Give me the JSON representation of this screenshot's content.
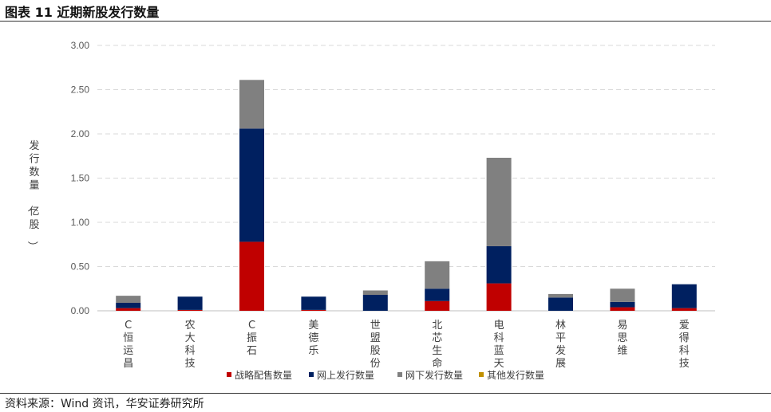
{
  "title": "图表 11 近期新股发行数量",
  "source": "资料来源：Wind 资讯，华安证券研究所",
  "chart_data": {
    "type": "bar",
    "stacked": true,
    "ylabel": "发行数量（亿股）",
    "ylim": [
      0,
      3.0
    ],
    "yticks": [
      "0.00",
      "0.50",
      "1.00",
      "1.50",
      "2.00",
      "2.50",
      "3.00"
    ],
    "grid": true,
    "legend_position": "bottom",
    "categories": [
      "C恒运昌",
      "农大科技",
      "C振石",
      "美德乐",
      "世盟股份",
      "北芯生命",
      "电科蓝天",
      "林平发展",
      "易思维",
      "爱得科技"
    ],
    "series": [
      {
        "name": "战略配售数量",
        "color": "#C00000",
        "values": [
          0.03,
          0.01,
          0.78,
          0.01,
          0.0,
          0.11,
          0.31,
          0.0,
          0.04,
          0.03
        ]
      },
      {
        "name": "网上发行数量",
        "color": "#002060",
        "values": [
          0.06,
          0.15,
          1.28,
          0.15,
          0.18,
          0.14,
          0.42,
          0.15,
          0.06,
          0.27
        ]
      },
      {
        "name": "网下发行数量",
        "color": "#808080",
        "values": [
          0.08,
          0.0,
          0.55,
          0.0,
          0.05,
          0.31,
          1.0,
          0.04,
          0.15,
          0.0
        ]
      },
      {
        "name": "其他发行数量",
        "color": "#C09000",
        "values": [
          0,
          0,
          0,
          0,
          0,
          0,
          0,
          0,
          0,
          0
        ]
      }
    ]
  }
}
